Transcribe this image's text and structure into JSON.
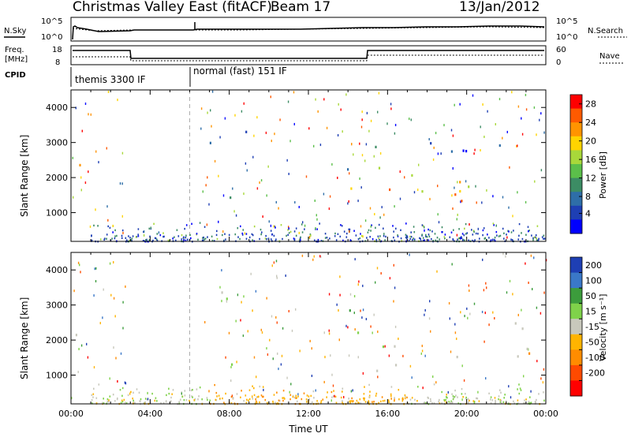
{
  "header": {
    "title": "Christmas Valley East (fitACF)",
    "beam": "Beam 17",
    "date": "13/Jan/2012"
  },
  "panels": {
    "nsky_label": "N.Sky",
    "nsearch_label": "N.Search",
    "freq_label_1": "Freq.",
    "freq_label_2": "[MHz]",
    "nave_label": "Nave",
    "cpid_label": "CPID",
    "cpid_1": "themis 3300 IF",
    "cpid_2": "normal (fast) 151 IF",
    "noise_left_ticks": [
      "10^5",
      "10^0"
    ],
    "noise_right_ticks": [
      "10^5",
      "10^0"
    ],
    "freq_left_ticks": [
      "18",
      "8"
    ],
    "freq_right_ticks": [
      "60",
      "0"
    ]
  },
  "chart_data": [
    {
      "type": "heatmap",
      "quantity": "power",
      "xlabel": "Time UT",
      "ylabel": "Slant Range [km]",
      "x_range_hours": [
        0,
        24
      ],
      "ylim": [
        180,
        4500
      ],
      "y_ticks": [
        1000,
        2000,
        3000,
        4000
      ],
      "colorbar": {
        "label": "Power [dB]",
        "ticks": [
          4,
          8,
          12,
          16,
          20,
          24,
          28
        ],
        "colors": [
          "#0000ff",
          "#1e3fb4",
          "#2e6ea8",
          "#3c8c64",
          "#5bbf4a",
          "#a8d83a",
          "#ffd400",
          "#ff9400",
          "#ff5a00",
          "#ff0000"
        ]
      },
      "regions": [
        {
          "t0": 0.1,
          "t1": 1.3,
          "r0": 1500,
          "r1": 2500,
          "v": 24
        },
        {
          "t0": 0.1,
          "t1": 0.5,
          "r0": 3300,
          "r1": 3700,
          "v": 10
        },
        {
          "t0": 6.9,
          "t1": 9.9,
          "r0": 2500,
          "r1": 3400,
          "v": 12
        },
        {
          "t0": 7.0,
          "t1": 9.5,
          "r0": 1200,
          "r1": 1600,
          "v": 8
        },
        {
          "t0": 13.7,
          "t1": 15.1,
          "r0": 1100,
          "r1": 2900,
          "v": 14
        },
        {
          "t0": 15.2,
          "t1": 23.9,
          "r0": 1000,
          "r1": 2450,
          "v": 22
        },
        {
          "t0": 14.8,
          "t1": 23.9,
          "r0": 2450,
          "r1": 3300,
          "v": 8
        }
      ]
    },
    {
      "type": "heatmap",
      "quantity": "velocity",
      "xlabel": "Time UT",
      "ylabel": "Slant Range [km]",
      "x_range_hours": [
        0,
        24
      ],
      "x_ticks": [
        "00:00",
        "04:00",
        "08:00",
        "12:00",
        "16:00",
        "20:00",
        "00:00"
      ],
      "ylim": [
        180,
        4500
      ],
      "y_ticks": [
        1000,
        2000,
        3000,
        4000
      ],
      "colorbar": {
        "label": "Velocity [m s⁻¹]",
        "ticks": [
          "200",
          "100",
          "50",
          "15",
          "-15",
          "-50",
          "-100",
          "-200"
        ],
        "colors": [
          "#1e3fb4",
          "#3a78c8",
          "#3c9c3c",
          "#7fd24a",
          "#c8c8bc",
          "#ffb400",
          "#ff8c00",
          "#ff4a00",
          "#ff0000"
        ]
      },
      "regions": [
        {
          "t0": 0.1,
          "t1": 1.3,
          "r0": 1500,
          "r1": 2500,
          "v": 0
        },
        {
          "t0": 6.9,
          "t1": 9.9,
          "r0": 2500,
          "r1": 3400,
          "v": 0
        },
        {
          "t0": 7.0,
          "t1": 9.5,
          "r0": 1200,
          "r1": 1600,
          "v": 30
        },
        {
          "t0": 13.7,
          "t1": 15.1,
          "r0": 1100,
          "r1": 2900,
          "v": 30
        },
        {
          "t0": 15.2,
          "t1": 23.9,
          "r0": 1000,
          "r1": 2600,
          "v": 0
        }
      ]
    }
  ]
}
